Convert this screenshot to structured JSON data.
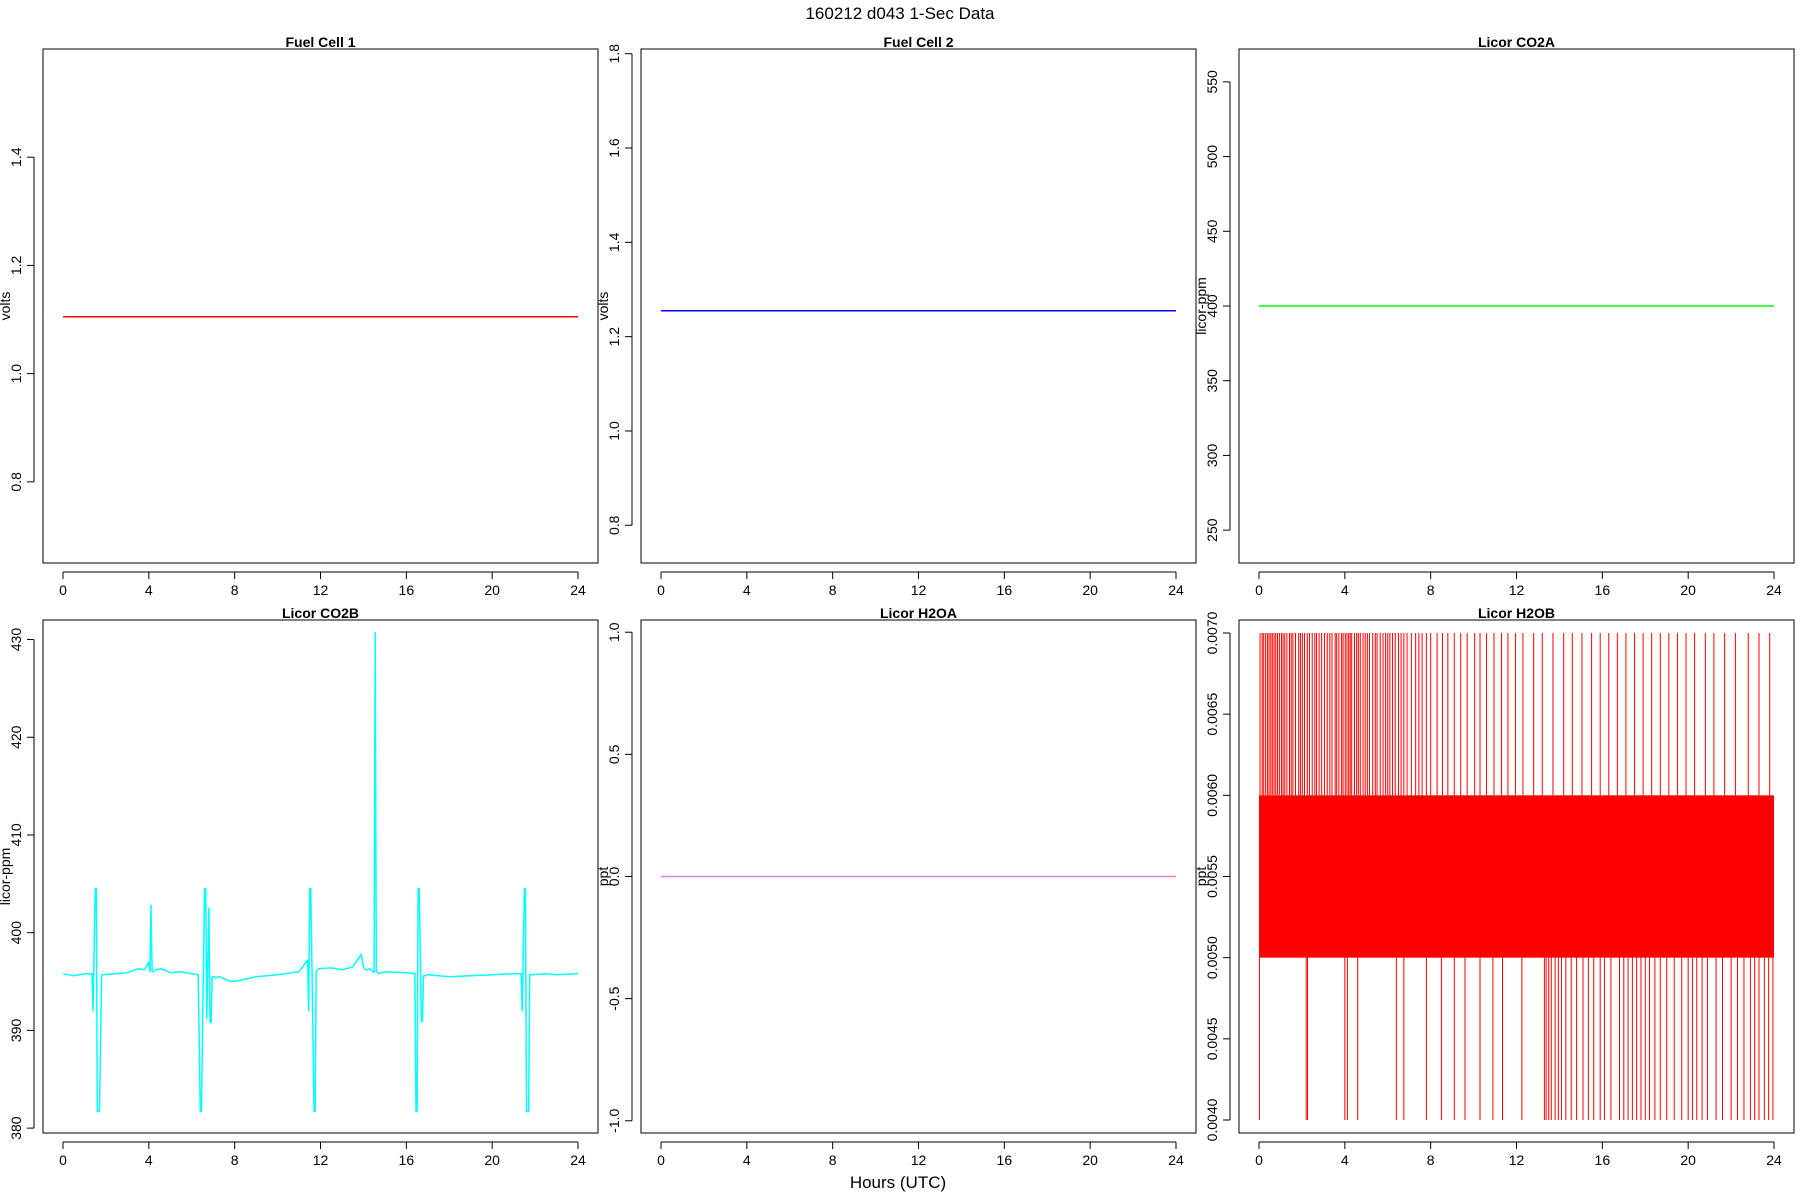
{
  "figure": {
    "title": "160212   d043   1-Sec Data",
    "xlabel": "Hours (UTC)"
  },
  "chart_data": [
    {
      "type": "line",
      "title": "Fuel Cell 1",
      "ylabel": "volts",
      "color": "#ff0000",
      "xlim": [
        0,
        24
      ],
      "ylim": [
        0.65,
        1.6
      ],
      "xticks": [
        0,
        4,
        8,
        12,
        16,
        20,
        24
      ],
      "yticks": [
        0.8,
        1.0,
        1.2,
        1.4
      ],
      "ytick_labels": [
        "0.8",
        "1.0",
        "1.2",
        "1.4"
      ],
      "series": [
        {
          "x": [
            0,
            24
          ],
          "y": [
            1.105,
            1.105
          ]
        }
      ]
    },
    {
      "type": "line",
      "title": "Fuel Cell 2",
      "ylabel": "volts",
      "color": "#0000ff",
      "xlim": [
        0,
        24
      ],
      "ylim": [
        0.72,
        1.81
      ],
      "xticks": [
        0,
        4,
        8,
        12,
        16,
        20,
        24
      ],
      "yticks": [
        0.8,
        1.0,
        1.2,
        1.4,
        1.6,
        1.8
      ],
      "ytick_labels": [
        "0.8",
        "1.0",
        "1.2",
        "1.4",
        "1.6",
        "1.8"
      ],
      "series": [
        {
          "x": [
            0,
            24
          ],
          "y": [
            1.255,
            1.255
          ]
        }
      ]
    },
    {
      "type": "line",
      "title": "Licor CO2A",
      "ylabel": "licor-ppm",
      "color": "#00ff00",
      "xlim": [
        0,
        24
      ],
      "ylim": [
        228,
        572
      ],
      "xticks": [
        0,
        4,
        8,
        12,
        16,
        20,
        24
      ],
      "yticks": [
        250,
        300,
        350,
        400,
        450,
        500,
        550
      ],
      "ytick_labels": [
        "250",
        "300",
        "350",
        "400",
        "450",
        "500",
        "550"
      ],
      "series": [
        {
          "x": [
            0,
            24
          ],
          "y": [
            400,
            400
          ]
        }
      ]
    },
    {
      "type": "line",
      "title": "Licor CO2B",
      "ylabel": "licor-ppm",
      "color": "#00ffff",
      "xlim": [
        0,
        24
      ],
      "ylim": [
        379.5,
        432
      ],
      "xticks": [
        0,
        4,
        8,
        12,
        16,
        20,
        24
      ],
      "yticks": [
        380,
        390,
        400,
        410,
        420,
        430
      ],
      "ytick_labels": [
        "380",
        "390",
        "400",
        "410",
        "420",
        "430"
      ],
      "series": [
        {
          "x": [
            0,
            0.5,
            1.0,
            1.35,
            1.4,
            1.5,
            1.55,
            1.6,
            1.7,
            1.8,
            2.5,
            3.0,
            3.5,
            3.8,
            4.0,
            4.05,
            4.1,
            4.15,
            4.2,
            4.3,
            4.6,
            5.0,
            5.5,
            6.0,
            6.3,
            6.4,
            6.45,
            6.6,
            6.65,
            6.7,
            6.8,
            6.85,
            6.9,
            6.95,
            7.05,
            7.1,
            7.3,
            7.8,
            8.2,
            9.0,
            10.0,
            11.0,
            11.4,
            11.45,
            11.5,
            11.55,
            11.7,
            11.75,
            11.8,
            11.9,
            12.5,
            13.0,
            13.5,
            13.9,
            14.0,
            14.1,
            14.3,
            14.5,
            14.55,
            14.6,
            14.65,
            14.7,
            15.0,
            16.0,
            16.4,
            16.45,
            16.5,
            16.55,
            16.6,
            16.7,
            16.75,
            16.8,
            16.9,
            17.0,
            18.0,
            19.0,
            20.0,
            21.0,
            21.35,
            21.4,
            21.5,
            21.55,
            21.6,
            21.7,
            21.75,
            21.8,
            22.5,
            23.0,
            24.0
          ],
          "y": [
            395.8,
            395.6,
            395.8,
            395.8,
            392.0,
            404.5,
            404.5,
            381.7,
            381.7,
            395.7,
            395.8,
            395.9,
            396.3,
            396.2,
            397.0,
            396.0,
            402.8,
            396.0,
            396.0,
            396.2,
            396.3,
            395.9,
            396.0,
            395.8,
            395.7,
            381.7,
            381.7,
            404.5,
            404.5,
            391.2,
            402.5,
            390.8,
            390.8,
            395.5,
            395.5,
            395.4,
            395.5,
            395.0,
            395.1,
            395.5,
            395.7,
            396.0,
            397.2,
            392.0,
            404.5,
            404.5,
            381.7,
            381.7,
            396.0,
            396.3,
            396.4,
            396.2,
            396.5,
            397.8,
            396.5,
            396.2,
            396.3,
            395.9,
            430.7,
            396.0,
            396.0,
            395.8,
            396.0,
            395.9,
            395.8,
            381.7,
            381.7,
            404.5,
            404.5,
            390.9,
            390.9,
            395.6,
            395.6,
            395.7,
            395.5,
            395.6,
            395.7,
            395.8,
            395.8,
            392.0,
            404.5,
            404.5,
            381.7,
            381.7,
            395.7,
            395.7,
            395.8,
            395.7,
            395.8
          ]
        }
      ]
    },
    {
      "type": "line",
      "title": "Licor H2OA",
      "ylabel": "ppt",
      "color": "#dd88dd",
      "xlim": [
        0,
        24
      ],
      "ylim": [
        -1.05,
        1.05
      ],
      "xticks": [
        0,
        4,
        8,
        12,
        16,
        20,
        24
      ],
      "yticks": [
        -1.0,
        -0.5,
        0.0,
        0.5,
        1.0
      ],
      "ytick_labels": [
        "-1.0",
        "-0.5",
        "0.0",
        "0.5",
        "1.0"
      ],
      "series": [
        {
          "x": [
            0,
            24
          ],
          "y": [
            0,
            0
          ]
        }
      ]
    },
    {
      "type": "line",
      "title": "Licor H2OB",
      "ylabel": "ppt",
      "color": "#ff0000",
      "xlim": [
        0,
        24
      ],
      "ylim": [
        0.00392,
        0.00708
      ],
      "xticks": [
        0,
        4,
        8,
        12,
        16,
        20,
        24
      ],
      "yticks": [
        0.004,
        0.0045,
        0.005,
        0.0055,
        0.006,
        0.0065,
        0.007
      ],
      "ytick_labels": [
        "0.0040",
        "0.0045",
        "0.0050",
        "0.0055",
        "0.0060",
        "0.0065",
        "0.0070"
      ],
      "band": {
        "x": [
          0,
          24
        ],
        "y": [
          0.005,
          0.006
        ]
      },
      "spikes_up_x": [
        0.05,
        0.15,
        0.22,
        0.31,
        0.4,
        0.47,
        0.55,
        0.62,
        0.7,
        0.78,
        0.86,
        0.95,
        1.05,
        1.12,
        1.2,
        1.3,
        1.42,
        1.5,
        1.58,
        1.7,
        1.85,
        1.93,
        2.02,
        2.12,
        2.25,
        2.35,
        2.48,
        2.6,
        2.68,
        2.8,
        2.92,
        3.05,
        3.18,
        3.3,
        3.4,
        3.55,
        3.62,
        3.72,
        3.85,
        3.92,
        4.02,
        4.1,
        4.18,
        4.25,
        4.32,
        4.45,
        4.55,
        4.63,
        4.72,
        4.85,
        4.95,
        5.05,
        5.15,
        5.3,
        5.42,
        5.5,
        5.65,
        5.78,
        5.9,
        6.0,
        6.1,
        6.22,
        6.35,
        6.5,
        6.62,
        6.75,
        6.9,
        7.1,
        7.3,
        7.45,
        7.6,
        7.8,
        8.0,
        8.3,
        8.55,
        8.8,
        9.1,
        9.4,
        9.7,
        10.05,
        10.3,
        10.6,
        10.95,
        11.3,
        11.6,
        11.95,
        12.3,
        12.8,
        13.2,
        13.7,
        14.2,
        14.6,
        15.05,
        15.5,
        15.9,
        16.3,
        16.7,
        17.1,
        17.5,
        17.9,
        18.3,
        18.7,
        19.1,
        19.5,
        19.9,
        20.3,
        20.8,
        21.2,
        21.7,
        22.2,
        22.8,
        23.3,
        23.8
      ],
      "spikes_down_x": [
        0.02,
        2.2,
        2.26,
        4.0,
        4.12,
        4.6,
        6.4,
        6.75,
        7.8,
        8.5,
        9.1,
        9.6,
        10.3,
        10.9,
        11.35,
        12.25,
        13.3,
        13.38,
        13.5,
        13.62,
        13.8,
        13.95,
        14.1,
        14.3,
        14.55,
        14.8,
        15.1,
        15.35,
        15.6,
        15.9,
        16.1,
        16.4,
        16.8,
        17.0,
        17.2,
        17.4,
        17.6,
        17.8,
        18.0,
        18.2,
        18.45,
        18.7,
        19.0,
        19.35,
        19.7,
        20.0,
        20.2,
        20.4,
        20.65,
        20.9,
        21.3,
        21.6,
        22.0,
        22.3,
        22.6,
        22.9,
        23.1,
        23.3,
        23.55,
        23.75,
        23.95
      ]
    }
  ]
}
